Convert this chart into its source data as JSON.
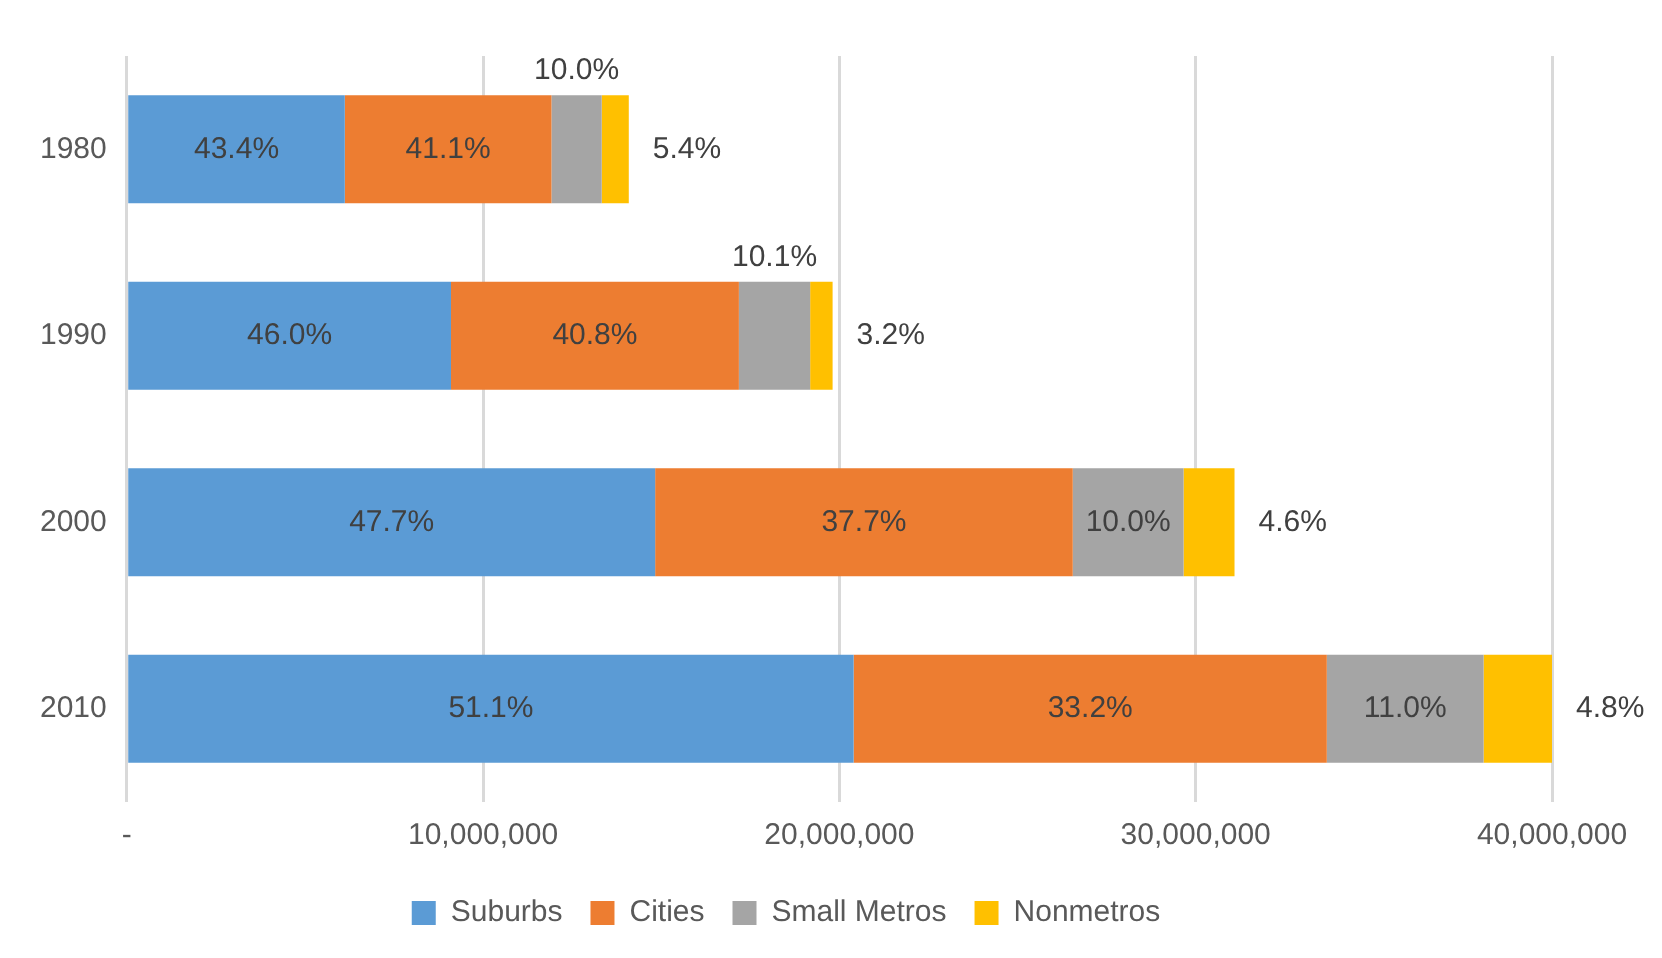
{
  "chart_data": {
    "type": "bar",
    "orientation": "horizontal",
    "stacked": true,
    "categories": [
      "1980",
      "1990",
      "2000",
      "2010"
    ],
    "series": [
      {
        "name": "Suburbs",
        "color": "#5b9bd5",
        "values": [
          6120000,
          9100000,
          14830000,
          20400000
        ]
      },
      {
        "name": "Cities",
        "color": "#ed7d31",
        "values": [
          5800000,
          8080000,
          11720000,
          13280000
        ]
      },
      {
        "name": "Small Metros",
        "color": "#a5a5a5",
        "values": [
          1410000,
          2000000,
          3110000,
          4400000
        ]
      },
      {
        "name": "Nonmetros",
        "color": "#ffc000",
        "values": [
          760000,
          630000,
          1430000,
          1920000
        ]
      }
    ],
    "annotations": [
      "43.4%",
      "41.1%",
      "10.0%",
      "5.4%",
      "46.0%",
      "40.8%",
      "10.1%",
      "3.2%",
      "47.7%",
      "37.7%",
      "10.0%",
      "4.6%",
      "51.1%",
      "33.2%",
      "11.0%",
      "4.8%"
    ],
    "xlim": [
      0,
      40000000
    ],
    "xticks": [
      {
        "value": 0,
        "label": "-"
      },
      {
        "value": 10000000,
        "label": "10,000,000"
      },
      {
        "value": 20000000,
        "label": "20,000,000"
      },
      {
        "value": 30000000,
        "label": "30,000,000"
      },
      {
        "value": 40000000,
        "label": "40,000,000"
      }
    ],
    "grid": "x",
    "legend": "bottom"
  }
}
